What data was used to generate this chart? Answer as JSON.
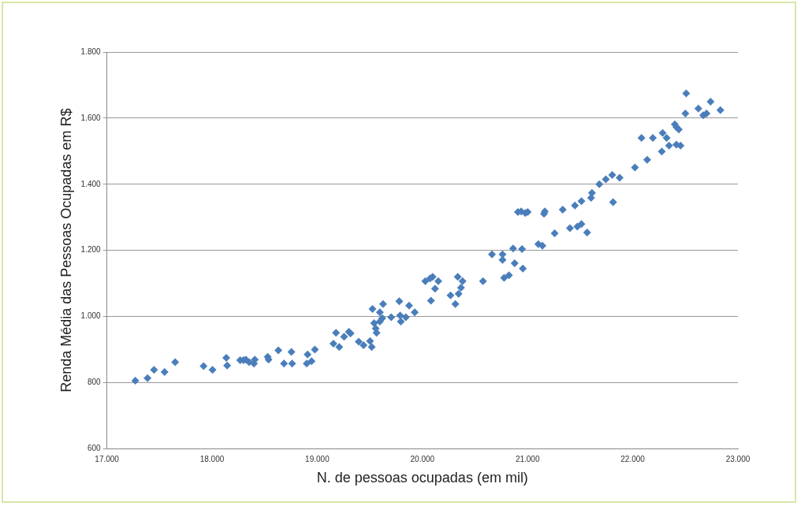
{
  "chart_data": {
    "type": "scatter",
    "xlabel": "N. de pessoas ocupadas (em mil)",
    "ylabel": "Renda Média das Pessoas Ocupadas em R$",
    "x": [
      17270,
      17386,
      17448,
      17548,
      17649,
      17919,
      18004,
      18135,
      18143,
      18267,
      18298,
      18321,
      18352,
      18398,
      18406,
      18529,
      18537,
      18630,
      18684,
      18754,
      18761,
      18900,
      18908,
      18946,
      18977,
      19154,
      19178,
      19209,
      19255,
      19301,
      19317,
      19394,
      19440,
      19502,
      19518,
      19525,
      19541,
      19564,
      19556,
      19595,
      19618,
      19626,
      19595,
      19703,
      19788,
      19780,
      19795,
      19842,
      19873,
      19927,
      20027,
      20081,
      20073,
      20097,
      20120,
      20151,
      20267,
      20313,
      20336,
      20344,
      20367,
      20382,
      20576,
      20661,
      20762,
      20762,
      20777,
      20823,
      20862,
      20877,
      20908,
      20939,
      20947,
      20955,
      20978,
      21001,
      21102,
      21141,
      21156,
      21164,
      21257,
      21334,
      21403,
      21450,
      21473,
      21512,
      21512,
      21566,
      21604,
      21612,
      21682,
      21744,
      21805,
      21813,
      21875,
      22021,
      22083,
      22137,
      22191,
      22276,
      22284,
      22322,
      22345,
      22400,
      22415,
      22438,
      22415,
      22454,
      22500,
      22508,
      22624,
      22670,
      22701,
      22740,
      22833
    ],
    "series": [
      {
        "color": "#4a7ebb",
        "values": [
          806,
          814,
          839,
          832,
          862,
          850,
          839,
          875,
          852,
          868,
          868,
          870,
          862,
          858,
          870,
          878,
          870,
          898,
          858,
          893,
          858,
          858,
          885,
          865,
          900,
          918,
          951,
          908,
          939,
          954,
          949,
          924,
          913,
          926,
          908,
          1023,
          980,
          951,
          964,
          1013,
          995,
          1038,
          985,
          998,
          1003,
          1046,
          985,
          998,
          1033,
          1013,
          1107,
          1048,
          1115,
          1120,
          1084,
          1107,
          1064,
          1038,
          1120,
          1069,
          1087,
          1107,
          1107,
          1188,
          1188,
          1171,
          1117,
          1125,
          1206,
          1161,
          1316,
          1318,
          1204,
          1145,
          1313,
          1316,
          1219,
          1214,
          1311,
          1318,
          1252,
          1323,
          1267,
          1336,
          1272,
          1349,
          1280,
          1254,
          1359,
          1374,
          1400,
          1415,
          1428,
          1346,
          1420,
          1451,
          1540,
          1474,
          1540,
          1499,
          1555,
          1540,
          1517,
          1581,
          1573,
          1566,
          1520,
          1517,
          1614,
          1675,
          1629,
          1609,
          1614,
          1650,
          1624
        ]
      }
    ],
    "xlim": [
      17000,
      23000
    ],
    "xticks": [
      {
        "value": 17000,
        "label": "17.000"
      },
      {
        "value": 18000,
        "label": "18.000"
      },
      {
        "value": 19000,
        "label": "19.000"
      },
      {
        "value": 20000,
        "label": "20.000"
      },
      {
        "value": 21000,
        "label": "21.000"
      },
      {
        "value": 22000,
        "label": "22.000"
      },
      {
        "value": 23000,
        "label": "23.000"
      }
    ],
    "ylim": [
      600,
      1800
    ],
    "yticks": [
      {
        "value": 600,
        "label": "600"
      },
      {
        "value": 800,
        "label": "800"
      },
      {
        "value": 1000,
        "label": "1.000"
      },
      {
        "value": 1200,
        "label": "1.200"
      },
      {
        "value": 1400,
        "label": "1.400"
      },
      {
        "value": 1600,
        "label": "1.600"
      },
      {
        "value": 1800,
        "label": "1.800"
      }
    ],
    "grid": "y",
    "marker": "diamond",
    "legend": false
  }
}
